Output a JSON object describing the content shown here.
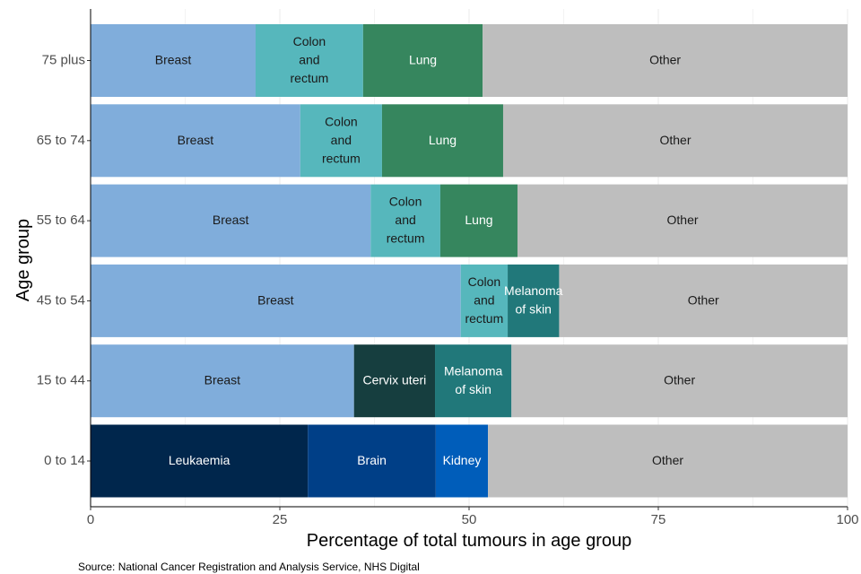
{
  "chart_data": {
    "type": "bar",
    "orientation": "horizontal",
    "stacked": true,
    "xlabel": "Percentage of total tumours in age group",
    "ylabel": "Age group",
    "xlim": [
      0,
      100
    ],
    "xticks": [
      0,
      25,
      50,
      75,
      100
    ],
    "grid": "vertical",
    "legend": "none",
    "caption": "Source: National Cancer Registration and Analysis Service, NHS Digital",
    "colors": {
      "Breast": "#80ADDB",
      "Colon and rectum": "#56B7BC",
      "Lung": "#36865E",
      "Melanoma of skin": "#21787A",
      "Cervix uteri": "#163E3F",
      "Leukaemia": "#00264C",
      "Brain": "#003F87",
      "Kidney": "#005DBA",
      "Other": "#BEBEBE"
    },
    "dark_text_segments": [
      "Breast",
      "Colon and rectum",
      "Other"
    ],
    "categories": [
      "75 plus",
      "65 to 74",
      "55 to 64",
      "45 to 54",
      "15 to 44",
      "0 to 14"
    ],
    "rows": [
      {
        "group": "75 plus",
        "segments": [
          {
            "name": "Breast",
            "label": [
              "Breast"
            ],
            "value": 21.8
          },
          {
            "name": "Colon and rectum",
            "label": [
              "Colon",
              "and",
              "rectum"
            ],
            "value": 14.2
          },
          {
            "name": "Lung",
            "label": [
              "Lung"
            ],
            "value": 15.8
          },
          {
            "name": "Other",
            "label": [
              "Other"
            ],
            "value": 48.2
          }
        ]
      },
      {
        "group": "65 to 74",
        "segments": [
          {
            "name": "Breast",
            "label": [
              "Breast"
            ],
            "value": 27.7
          },
          {
            "name": "Colon and rectum",
            "label": [
              "Colon",
              "and",
              "rectum"
            ],
            "value": 10.8
          },
          {
            "name": "Lung",
            "label": [
              "Lung"
            ],
            "value": 16.0
          },
          {
            "name": "Other",
            "label": [
              "Other"
            ],
            "value": 45.5
          }
        ]
      },
      {
        "group": "55 to 64",
        "segments": [
          {
            "name": "Breast",
            "label": [
              "Breast"
            ],
            "value": 37.0
          },
          {
            "name": "Colon and rectum",
            "label": [
              "Colon",
              "and",
              "rectum"
            ],
            "value": 9.2
          },
          {
            "name": "Lung",
            "label": [
              "Lung"
            ],
            "value": 10.2
          },
          {
            "name": "Other",
            "label": [
              "Other"
            ],
            "value": 43.6
          }
        ]
      },
      {
        "group": "45 to 54",
        "segments": [
          {
            "name": "Breast",
            "label": [
              "Breast"
            ],
            "value": 48.9
          },
          {
            "name": "Colon and rectum",
            "label": [
              "Colon",
              "and",
              "rectum"
            ],
            "value": 6.2
          },
          {
            "name": "Melanoma of skin",
            "label": [
              "Melanoma",
              "of skin"
            ],
            "value": 6.8
          },
          {
            "name": "Other",
            "label": [
              "Other"
            ],
            "value": 38.1
          }
        ]
      },
      {
        "group": "15 to 44",
        "segments": [
          {
            "name": "Breast",
            "label": [
              "Breast"
            ],
            "value": 34.8
          },
          {
            "name": "Cervix uteri",
            "label": [
              "Cervix uteri"
            ],
            "value": 10.7
          },
          {
            "name": "Melanoma of skin",
            "label": [
              "Melanoma",
              "of skin"
            ],
            "value": 10.1
          },
          {
            "name": "Other",
            "label": [
              "Other"
            ],
            "value": 44.4
          }
        ]
      },
      {
        "group": "0 to 14",
        "segments": [
          {
            "name": "Leukaemia",
            "label": [
              "Leukaemia"
            ],
            "value": 28.7
          },
          {
            "name": "Brain",
            "label": [
              "Brain"
            ],
            "value": 16.9
          },
          {
            "name": "Kidney",
            "label": [
              "Kidney"
            ],
            "value": 6.9
          },
          {
            "name": "Other",
            "label": [
              "Other"
            ],
            "value": 47.5
          }
        ]
      }
    ]
  }
}
